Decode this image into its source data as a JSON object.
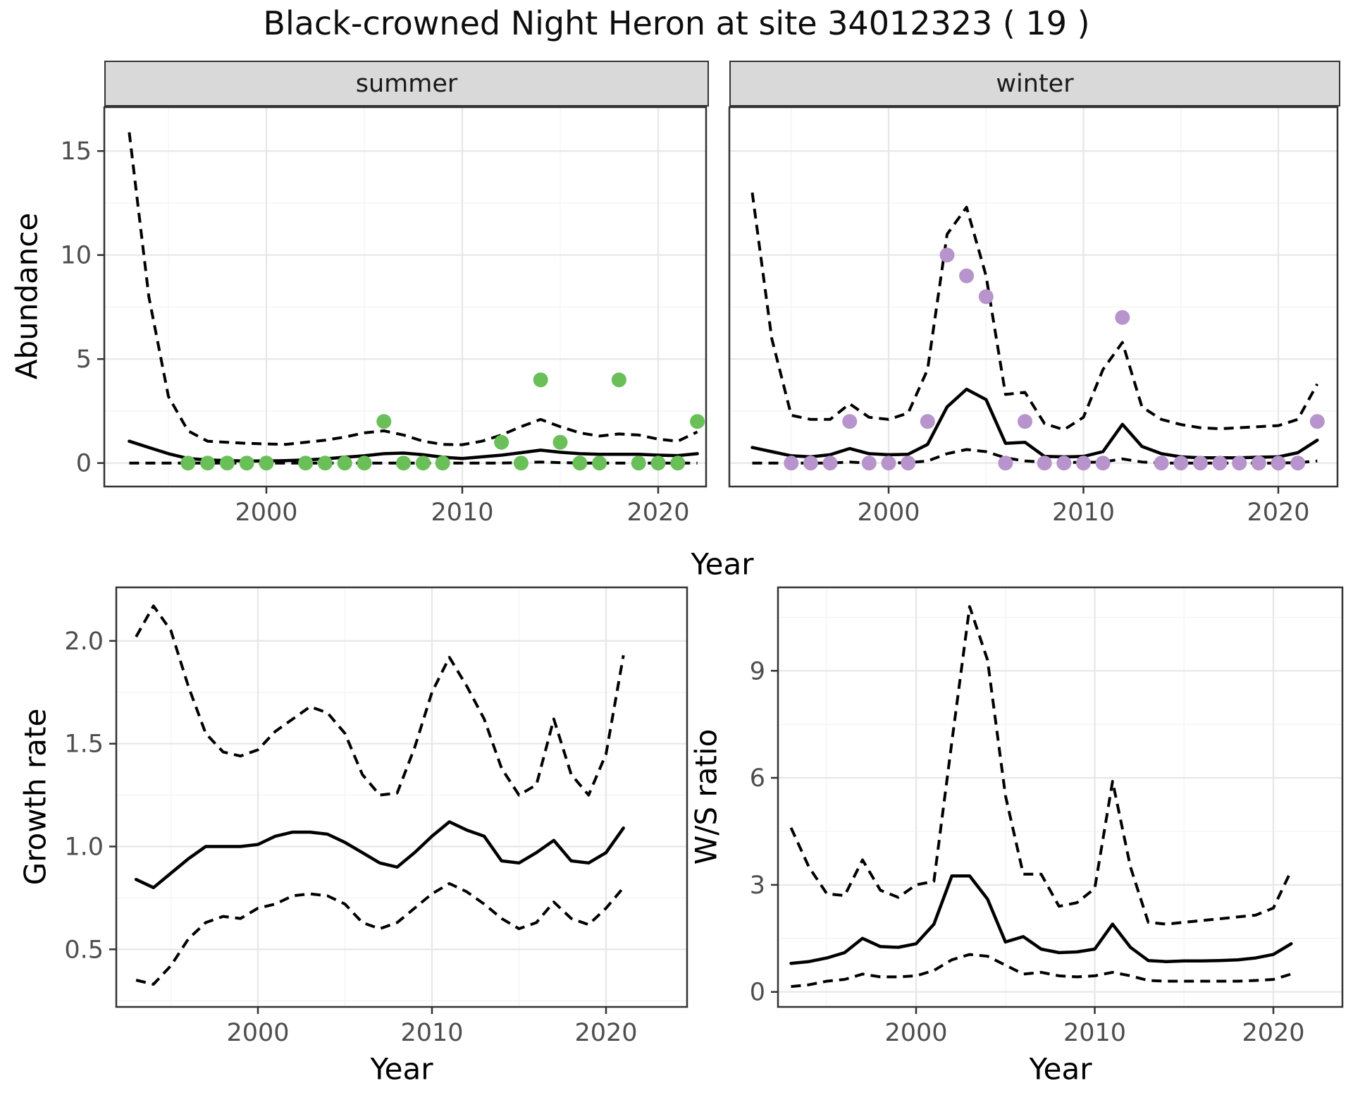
{
  "title": "Black-crowned Night Heron at site 34012323 ( 19 )",
  "colors": {
    "background": "#ffffff",
    "grid_major": "#e7e7e7",
    "grid_minor": "#f3f3f3",
    "panel_border": "#333333",
    "strip_background": "#d9d9d9",
    "strip_text": "#1a1a1a",
    "tick_text": "#4d4d4d",
    "line": "#000000",
    "summer_point": "#6abf59",
    "winter_point": "#b794cc"
  },
  "chart_data": [
    {
      "id": "abundance-summer",
      "type": "line",
      "facet": "summer",
      "xlabel": "Year",
      "ylabel": "Abundance",
      "xlim": [
        1991.7,
        2022.6
      ],
      "ylim": [
        -1.1,
        17.1
      ],
      "x_ticks": [
        2000,
        2010,
        2020
      ],
      "x_tick_labels": [
        "2000",
        "2010",
        "2020"
      ],
      "x_minor_breaks": [
        1995,
        2005,
        2015
      ],
      "y_ticks": [
        0,
        5,
        10,
        15
      ],
      "y_tick_labels": [
        "0",
        "5",
        "10",
        "15"
      ],
      "y_minor_breaks": [
        2.5,
        7.5,
        12.5
      ],
      "grid": true,
      "legend": "none",
      "x": [
        1993,
        1994,
        1995,
        1996,
        1997,
        1998,
        1999,
        2000,
        2001,
        2002,
        2003,
        2004,
        2005,
        2006,
        2007,
        2008,
        2009,
        2010,
        2011,
        2012,
        2013,
        2014,
        2015,
        2016,
        2017,
        2018,
        2019,
        2020,
        2021,
        2022
      ],
      "series": [
        {
          "name": "upper-95ci",
          "style": "dashed",
          "values": [
            15.9,
            8.0,
            3.2,
            1.55,
            1.05,
            1.0,
            0.95,
            0.92,
            0.9,
            1.0,
            1.1,
            1.25,
            1.45,
            1.55,
            1.35,
            1.05,
            0.9,
            0.88,
            1.05,
            1.35,
            1.75,
            2.1,
            1.75,
            1.45,
            1.3,
            1.4,
            1.35,
            1.15,
            1.05,
            1.5
          ]
        },
        {
          "name": "median",
          "style": "solid",
          "values": [
            1.05,
            0.75,
            0.45,
            0.22,
            0.15,
            0.12,
            0.1,
            0.1,
            0.12,
            0.15,
            0.2,
            0.28,
            0.35,
            0.45,
            0.48,
            0.4,
            0.28,
            0.22,
            0.3,
            0.38,
            0.5,
            0.62,
            0.52,
            0.45,
            0.42,
            0.42,
            0.42,
            0.38,
            0.36,
            0.45
          ]
        },
        {
          "name": "lower-95ci",
          "style": "dashed",
          "values": [
            0,
            0,
            0,
            0,
            0,
            0,
            0,
            0,
            0,
            0,
            0,
            0,
            0,
            0,
            0,
            0,
            0,
            0,
            0,
            0,
            0.02,
            0.05,
            0.02,
            0,
            0,
            0,
            0,
            0,
            0,
            0
          ]
        }
      ],
      "observations": {
        "name": "summer-counts",
        "color_key": "summer_point",
        "years": [
          1996,
          1997,
          1998,
          1999,
          2000,
          2002,
          2003,
          2004,
          2005,
          2006,
          2007,
          2008,
          2009,
          2012,
          2013,
          2014,
          2015,
          2016,
          2017,
          2018,
          2019,
          2020,
          2021,
          2022
        ],
        "values": [
          0,
          0,
          0,
          0,
          0,
          0,
          0,
          0,
          0,
          2,
          0,
          0,
          0,
          1,
          0,
          4,
          1,
          0,
          0,
          4,
          0,
          0,
          0,
          2
        ]
      }
    },
    {
      "id": "abundance-winter",
      "type": "line",
      "facet": "winter",
      "xlabel": "Year",
      "ylabel": "Abundance",
      "xlim": [
        1991.8,
        2023.2
      ],
      "ylim": [
        -1.1,
        17.1
      ],
      "x_ticks": [
        2000,
        2010,
        2020
      ],
      "x_tick_labels": [
        "2000",
        "2010",
        "2020"
      ],
      "x_minor_breaks": [
        1995,
        2005,
        2015
      ],
      "y_ticks": [
        0,
        5,
        10,
        15
      ],
      "y_tick_labels": [
        "0",
        "5",
        "10",
        "15"
      ],
      "y_minor_breaks": [
        2.5,
        7.5,
        12.5
      ],
      "grid": true,
      "legend": "none",
      "x": [
        1993,
        1994,
        1995,
        1996,
        1997,
        1998,
        1999,
        2000,
        2001,
        2002,
        2003,
        2004,
        2005,
        2006,
        2007,
        2008,
        2009,
        2010,
        2011,
        2012,
        2013,
        2014,
        2015,
        2016,
        2017,
        2018,
        2019,
        2020,
        2021,
        2022
      ],
      "series": [
        {
          "name": "upper-95ci",
          "style": "dashed",
          "values": [
            13.0,
            6.0,
            2.3,
            2.1,
            2.1,
            2.85,
            2.2,
            2.1,
            2.4,
            4.5,
            11.0,
            12.3,
            9.0,
            3.3,
            3.4,
            1.9,
            1.6,
            2.2,
            4.5,
            5.8,
            2.7,
            2.1,
            1.85,
            1.7,
            1.65,
            1.7,
            1.75,
            1.8,
            2.1,
            3.8
          ]
        },
        {
          "name": "median",
          "style": "solid",
          "values": [
            0.75,
            0.55,
            0.35,
            0.3,
            0.4,
            0.7,
            0.45,
            0.4,
            0.42,
            0.9,
            2.7,
            3.55,
            3.05,
            0.95,
            1.0,
            0.32,
            0.3,
            0.32,
            0.55,
            1.86,
            0.8,
            0.45,
            0.3,
            0.25,
            0.25,
            0.25,
            0.28,
            0.3,
            0.5,
            1.1
          ]
        },
        {
          "name": "lower-95ci",
          "style": "dashed",
          "values": [
            0,
            0,
            0,
            0,
            0,
            0.05,
            0,
            0,
            0.02,
            0.1,
            0.45,
            0.65,
            0.55,
            0.25,
            0.1,
            0.05,
            0.03,
            0.03,
            0.05,
            0.2,
            0.05,
            0,
            0,
            0,
            0,
            0,
            0,
            0,
            0.02,
            0.1
          ]
        }
      ],
      "observations": {
        "name": "winter-counts",
        "color_key": "winter_point",
        "years": [
          1995,
          1996,
          1997,
          1998,
          1999,
          2000,
          2001,
          2002,
          2003,
          2004,
          2005,
          2006,
          2007,
          2008,
          2009,
          2010,
          2011,
          2012,
          2014,
          2015,
          2016,
          2017,
          2018,
          2019,
          2020,
          2021,
          2022
        ],
        "values": [
          0,
          0,
          0,
          2,
          0,
          0,
          0,
          2,
          10,
          9,
          8,
          0,
          2,
          0,
          0,
          0,
          0,
          7,
          0,
          0,
          0,
          0,
          0,
          0,
          0,
          0,
          2
        ]
      }
    },
    {
      "id": "growth-rate",
      "type": "line",
      "facet": "",
      "xlabel": "Year",
      "ylabel": "Growth rate",
      "xlim": [
        1991.9,
        2024.6
      ],
      "ylim": [
        0.22,
        2.26
      ],
      "x_ticks": [
        2000,
        2010,
        2020
      ],
      "x_tick_labels": [
        "2000",
        "2010",
        "2020"
      ],
      "x_minor_breaks": [
        1995,
        2005,
        2015
      ],
      "y_ticks": [
        0.5,
        1.0,
        1.5,
        2.0
      ],
      "y_tick_labels": [
        "0.5",
        "1.0",
        "1.5",
        "2.0"
      ],
      "y_minor_breaks": [
        0.25,
        0.75,
        1.25,
        1.75
      ],
      "grid": true,
      "legend": "none",
      "x": [
        1993,
        1994,
        1995,
        1996,
        1997,
        1998,
        1999,
        2000,
        2001,
        2002,
        2003,
        2004,
        2005,
        2006,
        2007,
        2008,
        2009,
        2010,
        2011,
        2012,
        2013,
        2014,
        2015,
        2016,
        2017,
        2018,
        2019,
        2020,
        2021
      ],
      "series": [
        {
          "name": "upper-95ci",
          "style": "dashed",
          "values": [
            2.02,
            2.17,
            2.05,
            1.78,
            1.55,
            1.46,
            1.44,
            1.47,
            1.56,
            1.62,
            1.68,
            1.65,
            1.55,
            1.35,
            1.25,
            1.26,
            1.48,
            1.75,
            1.92,
            1.78,
            1.62,
            1.38,
            1.25,
            1.3,
            1.62,
            1.35,
            1.25,
            1.45,
            1.93
          ]
        },
        {
          "name": "median",
          "style": "solid",
          "values": [
            0.84,
            0.8,
            0.87,
            0.94,
            1.0,
            1.0,
            1.0,
            1.01,
            1.05,
            1.07,
            1.07,
            1.06,
            1.02,
            0.97,
            0.92,
            0.9,
            0.97,
            1.05,
            1.12,
            1.08,
            1.05,
            0.93,
            0.92,
            0.97,
            1.03,
            0.93,
            0.92,
            0.97,
            1.09
          ]
        },
        {
          "name": "lower-95ci",
          "style": "dashed",
          "values": [
            0.35,
            0.33,
            0.42,
            0.55,
            0.63,
            0.66,
            0.65,
            0.7,
            0.72,
            0.76,
            0.77,
            0.76,
            0.72,
            0.63,
            0.6,
            0.63,
            0.7,
            0.77,
            0.82,
            0.78,
            0.72,
            0.65,
            0.6,
            0.63,
            0.73,
            0.65,
            0.62,
            0.7,
            0.8
          ]
        }
      ]
    },
    {
      "id": "ws-ratio",
      "type": "line",
      "facet": "",
      "xlabel": "Year",
      "ylabel": "W/S ratio",
      "xlim": [
        1992.3,
        2023.9
      ],
      "ylim": [
        -0.42,
        11.34
      ],
      "x_ticks": [
        2000,
        2010,
        2020
      ],
      "x_tick_labels": [
        "2000",
        "2010",
        "2020"
      ],
      "x_minor_breaks": [
        1995,
        2005,
        2015
      ],
      "y_ticks": [
        0,
        3,
        6,
        9
      ],
      "y_tick_labels": [
        "0",
        "3",
        "6",
        "9"
      ],
      "y_minor_breaks": [
        1.5,
        4.5,
        7.5,
        10.5
      ],
      "grid": true,
      "legend": "none",
      "x": [
        1993,
        1994,
        1995,
        1996,
        1997,
        1998,
        1999,
        2000,
        2001,
        2002,
        2003,
        2004,
        2005,
        2006,
        2007,
        2008,
        2009,
        2010,
        2011,
        2012,
        2013,
        2014,
        2015,
        2016,
        2017,
        2018,
        2019,
        2020,
        2021
      ],
      "series": [
        {
          "name": "upper-95ci",
          "style": "dashed",
          "values": [
            4.6,
            3.5,
            2.75,
            2.7,
            3.7,
            2.85,
            2.65,
            3.0,
            3.1,
            7.0,
            10.8,
            9.3,
            5.5,
            3.3,
            3.3,
            2.4,
            2.5,
            2.9,
            5.9,
            3.5,
            1.95,
            1.9,
            1.95,
            2.0,
            2.05,
            2.1,
            2.15,
            2.35,
            3.4
          ]
        },
        {
          "name": "median",
          "style": "solid",
          "values": [
            0.8,
            0.85,
            0.95,
            1.1,
            1.5,
            1.27,
            1.25,
            1.35,
            1.9,
            3.25,
            3.25,
            2.6,
            1.4,
            1.55,
            1.2,
            1.1,
            1.12,
            1.2,
            1.9,
            1.25,
            0.88,
            0.85,
            0.87,
            0.87,
            0.88,
            0.9,
            0.95,
            1.05,
            1.35
          ]
        },
        {
          "name": "lower-95ci",
          "style": "dashed",
          "values": [
            0.15,
            0.2,
            0.3,
            0.35,
            0.5,
            0.42,
            0.42,
            0.45,
            0.6,
            0.9,
            1.05,
            1.0,
            0.75,
            0.5,
            0.55,
            0.45,
            0.42,
            0.45,
            0.55,
            0.45,
            0.32,
            0.3,
            0.3,
            0.3,
            0.3,
            0.3,
            0.32,
            0.35,
            0.5
          ]
        }
      ]
    }
  ]
}
